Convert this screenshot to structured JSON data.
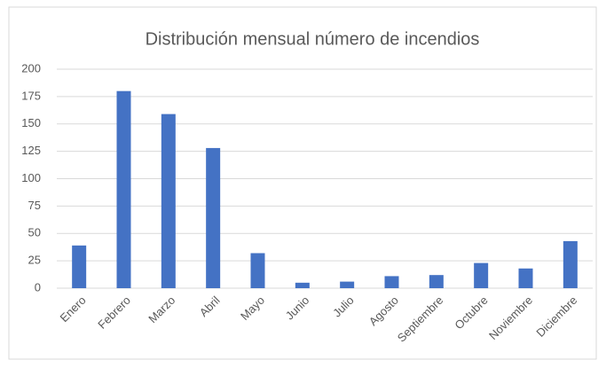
{
  "chart_data": {
    "type": "bar",
    "title": "Distribución mensual número de incendios",
    "categories": [
      "Enero",
      "Febrero",
      "Marzo",
      "Abril",
      "Mayo",
      "Junio",
      "Julio",
      "Agosto",
      "Septiembre",
      "Octubre",
      "Noviembre",
      "Diciembre"
    ],
    "values": [
      39,
      180,
      159,
      128,
      32,
      5,
      6,
      11,
      12,
      23,
      18,
      43
    ],
    "color": "#4472c4",
    "ylim": [
      0,
      200
    ],
    "yticks": [
      0,
      25,
      50,
      75,
      100,
      125,
      150,
      175,
      200
    ],
    "grid": true
  }
}
